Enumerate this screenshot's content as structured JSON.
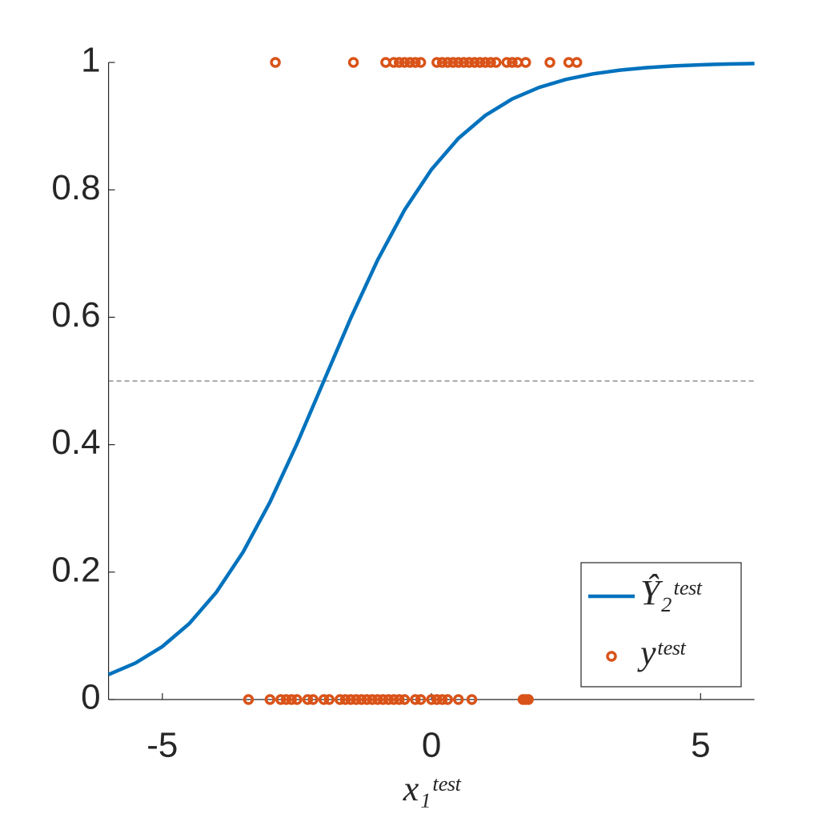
{
  "chart_data": {
    "type": "line",
    "xlabel": "x₁ᵗᵉˢᵗ",
    "xlim": [
      -6,
      6
    ],
    "xticks": [
      -5,
      0,
      5
    ],
    "ylim": [
      0,
      1
    ],
    "yticks": [
      0,
      0.2,
      0.4,
      0.6,
      0.8,
      1
    ],
    "reference_line": 0.5,
    "legend": "lower right",
    "series": [
      {
        "name": "Ŷ₂ᵗᵉˢᵗ",
        "type": "line",
        "color": "#0072bd",
        "x": [
          -6,
          -5.5,
          -5,
          -4.5,
          -4,
          -3.5,
          -3,
          -2.5,
          -2,
          -1.5,
          -1,
          -0.5,
          0,
          0.5,
          1,
          1.5,
          2,
          2.5,
          3,
          3.5,
          4,
          4.5,
          5,
          5.5,
          6
        ],
        "values": [
          0.0392,
          0.0573,
          0.0832,
          0.1192,
          0.168,
          0.2315,
          0.31,
          0.4013,
          0.5,
          0.5987,
          0.69,
          0.7685,
          0.832,
          0.8808,
          0.9168,
          0.9427,
          0.9608,
          0.9734,
          0.982,
          0.9879,
          0.9918,
          0.9945,
          0.9963,
          0.9975,
          0.9983
        ]
      },
      {
        "name": "yᵗᵉˢᵗ",
        "type": "scatter",
        "color": "#d95319",
        "x": [
          -2.9,
          -1.45,
          -0.85,
          -0.7,
          -0.6,
          -0.5,
          -0.4,
          -0.3,
          -0.2,
          0.1,
          0.2,
          0.3,
          0.4,
          0.5,
          0.6,
          0.7,
          0.8,
          0.9,
          1.0,
          1.1,
          1.2,
          1.4,
          1.5,
          1.6,
          1.75,
          2.2,
          2.55,
          2.7,
          -3.4,
          -3.0,
          -2.8,
          -2.7,
          -2.6,
          -2.5,
          -2.3,
          -2.2,
          -2.0,
          -1.9,
          -1.7,
          -1.6,
          -1.5,
          -1.4,
          -1.3,
          -1.2,
          -1.1,
          -1.0,
          -0.9,
          -0.8,
          -0.7,
          -0.6,
          -0.5,
          -0.3,
          -0.2,
          0.0,
          0.1,
          0.2,
          0.3,
          0.5,
          0.75,
          1.7,
          1.75,
          1.8
        ],
        "values": [
          1,
          1,
          1,
          1,
          1,
          1,
          1,
          1,
          1,
          1,
          1,
          1,
          1,
          1,
          1,
          1,
          1,
          1,
          1,
          1,
          1,
          1,
          1,
          1,
          1,
          1,
          1,
          1,
          0,
          0,
          0,
          0,
          0,
          0,
          0,
          0,
          0,
          0,
          0,
          0,
          0,
          0,
          0,
          0,
          0,
          0,
          0,
          0,
          0,
          0,
          0,
          0,
          0,
          0,
          0,
          0,
          0,
          0,
          0,
          0,
          0,
          0
        ]
      }
    ]
  }
}
